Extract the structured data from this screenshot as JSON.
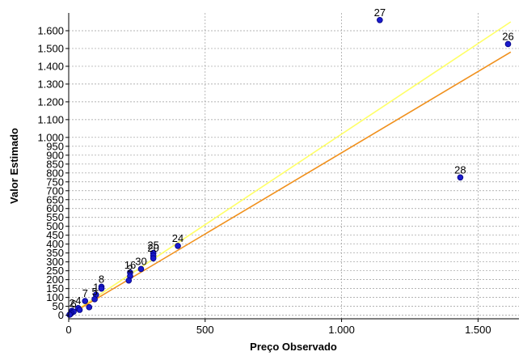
{
  "chart_data": {
    "type": "scatter",
    "xlabel": "Preço Observado",
    "ylabel": "Valor Estimado",
    "xlim": [
      0,
      1650
    ],
    "ylim": [
      -20,
      1700
    ],
    "x_ticks": [
      0,
      500,
      1000,
      1500
    ],
    "x_tick_labels": [
      "0",
      "500",
      "1.000",
      "1.500"
    ],
    "y_ticks": [
      0,
      50,
      100,
      150,
      200,
      250,
      300,
      350,
      400,
      450,
      500,
      550,
      600,
      650,
      700,
      750,
      800,
      850,
      900,
      950,
      1000,
      1100,
      1200,
      1300,
      1400,
      1500,
      1600
    ],
    "y_tick_labels": [
      "0",
      "50",
      "100",
      "150",
      "200",
      "250",
      "300",
      "350",
      "400",
      "450",
      "500",
      "550",
      "600",
      "650",
      "700",
      "750",
      "800",
      "850",
      "900",
      "950",
      "1.000",
      "1.100",
      "1.200",
      "1.300",
      "1.400",
      "1.500",
      "1.600"
    ],
    "grid": true,
    "point_color": "#1a1acc",
    "point_edge_color": "#000080",
    "lines": [
      {
        "color": "#ffff66",
        "x": [
          0,
          1620
        ],
        "y": [
          0,
          1650
        ]
      },
      {
        "color": "#f0901c",
        "x": [
          0,
          1620
        ],
        "y": [
          0,
          1480
        ]
      }
    ],
    "points": [
      {
        "label": "27",
        "x": 1140,
        "y": 1660
      },
      {
        "label": "26",
        "x": 1610,
        "y": 1525
      },
      {
        "label": "28",
        "x": 1435,
        "y": 775
      },
      {
        "label": "24",
        "x": 400,
        "y": 390
      },
      {
        "label": "25",
        "x": 310,
        "y": 350
      },
      {
        "label": "20",
        "x": 310,
        "y": 335
      },
      {
        "label": "",
        "x": 310,
        "y": 320
      },
      {
        "label": "30",
        "x": 265,
        "y": 260
      },
      {
        "label": "16",
        "x": 225,
        "y": 240
      },
      {
        "label": "2",
        "x": 225,
        "y": 220
      },
      {
        "label": "",
        "x": 220,
        "y": 195
      },
      {
        "label": "8",
        "x": 120,
        "y": 160
      },
      {
        "label": "",
        "x": 120,
        "y": 150
      },
      {
        "label": "1",
        "x": 100,
        "y": 115
      },
      {
        "label": "5",
        "x": 95,
        "y": 90
      },
      {
        "label": "7",
        "x": 60,
        "y": 80
      },
      {
        "label": "",
        "x": 75,
        "y": 45
      },
      {
        "label": "4",
        "x": 35,
        "y": 40
      },
      {
        "label": "",
        "x": 40,
        "y": 30
      },
      {
        "label": "2",
        "x": 12,
        "y": 25
      },
      {
        "label": "6",
        "x": 18,
        "y": 20
      },
      {
        "label": "",
        "x": 10,
        "y": 12
      },
      {
        "label": "",
        "x": 6,
        "y": 6
      },
      {
        "label": "",
        "x": 3,
        "y": 3
      }
    ]
  }
}
